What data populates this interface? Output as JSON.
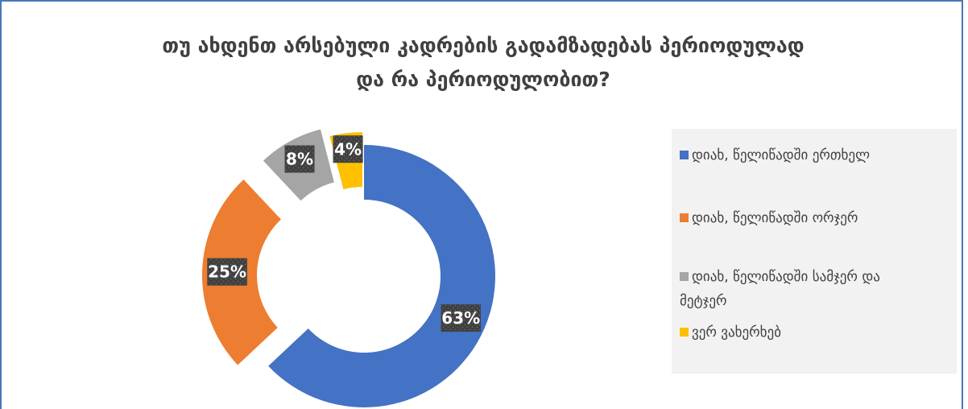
{
  "chart_data": {
    "type": "pie",
    "variant": "exploded-doughnut",
    "title_lines": [
      "თუ ახდენთ არსებული კადრების გადამზადებას პერიოდულად",
      "და რა პერიოდულობით?"
    ],
    "categories": [
      "დიახ, წელიწადში ერთხელ",
      "დიახ, წელიწადში ორჯერ",
      "დიახ, წელიწადში სამჯერ და მეტჯერ",
      "ვერ ვახერხებ"
    ],
    "legend_lines": [
      [
        "დიახ, წელიწადში ერთხელ"
      ],
      [
        "დიახ, წელიწადში ორჯერ"
      ],
      [
        "დიახ, წელიწადში სამჯერ და",
        "მეტჯერ"
      ],
      [
        "ვერ ვახერხებ"
      ]
    ],
    "values": [
      63,
      25,
      8,
      4
    ],
    "labels": [
      "63%",
      "25%",
      "8%",
      "4%"
    ],
    "colors": [
      "#4472c4",
      "#ed7d31",
      "#a5a5a5",
      "#ffc000"
    ],
    "legend_position": "right"
  }
}
